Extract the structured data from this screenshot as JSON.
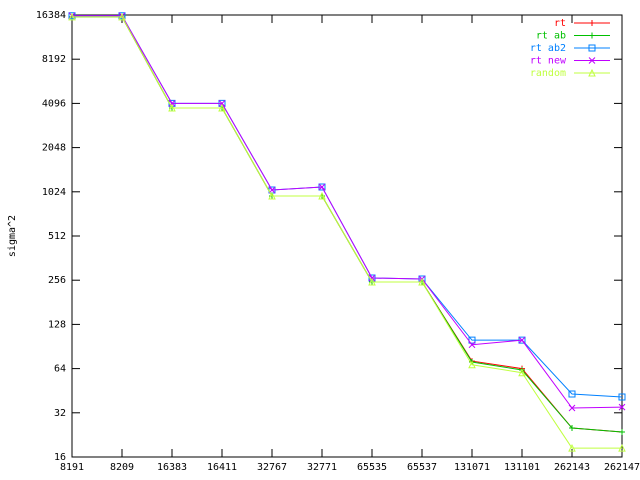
{
  "chart_data": {
    "type": "line",
    "y_label": "sigma^2",
    "categories": [
      "8191",
      "8209",
      "16383",
      "16411",
      "32767",
      "32771",
      "65535",
      "65537",
      "131071",
      "131101",
      "262143",
      "262147"
    ],
    "log_scale_y": true,
    "ylim": [
      16,
      16384
    ],
    "yticks": [
      16,
      32,
      64,
      128,
      256,
      512,
      1024,
      2048,
      4096,
      8192,
      16384
    ],
    "legend_position": "top-right",
    "series": [
      {
        "name": "rt",
        "color": "#ff0000",
        "values": [
          15900,
          15900,
          3811,
          3811,
          958,
          958,
          249,
          249,
          72,
          64,
          25.2,
          23.7
        ]
      },
      {
        "name": "rt ab",
        "color": "#00c000",
        "values": [
          15900,
          15900,
          3811,
          3811,
          958,
          958,
          249,
          249,
          71,
          62.6,
          25.2,
          23.7
        ]
      },
      {
        "name": "rt ab2",
        "color": "#0080ff",
        "values": [
          16200,
          16200,
          4096,
          4096,
          1053,
          1104,
          265,
          261,
          100,
          100,
          43,
          41
        ]
      },
      {
        "name": "rt new",
        "color": "#c000ff",
        "values": [
          16200,
          16200,
          4096,
          4096,
          1053,
          1104,
          265,
          261,
          93,
          100,
          34.5,
          35
        ]
      },
      {
        "name": "random",
        "color": "#c0ff40",
        "values": [
          15900,
          15900,
          3811,
          3811,
          958,
          958,
          249,
          249,
          68,
          60,
          18.4,
          18.4
        ]
      }
    ]
  }
}
